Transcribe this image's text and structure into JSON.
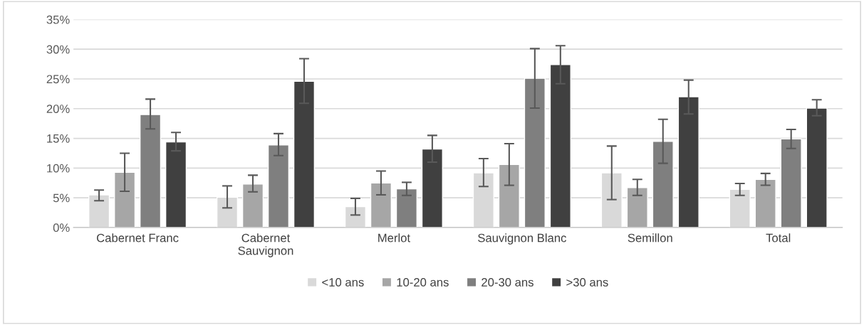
{
  "chart_data": {
    "type": "bar",
    "categories": [
      "Cabernet Franc",
      "Cabernet\nSauvignon",
      "Merlot",
      "Sauvignon Blanc",
      "Semillon",
      "Total"
    ],
    "series": [
      {
        "name": "<10 ans",
        "color": "#d9d9d9",
        "values": [
          5.5,
          5.1,
          3.5,
          9.2,
          9.2,
          6.4
        ],
        "errors": [
          [
            4.5,
            6.3
          ],
          [
            3.3,
            7.0
          ],
          [
            2.1,
            4.9
          ],
          [
            6.9,
            11.6
          ],
          [
            4.7,
            13.7
          ],
          [
            5.4,
            7.4
          ]
        ]
      },
      {
        "name": "10-20 ans",
        "color": "#a6a6a6",
        "values": [
          9.3,
          7.3,
          7.5,
          10.6,
          6.7,
          8.1
        ],
        "errors": [
          [
            6.1,
            12.5
          ],
          [
            6.0,
            8.8
          ],
          [
            5.5,
            9.5
          ],
          [
            7.1,
            14.1
          ],
          [
            5.4,
            8.1
          ],
          [
            7.1,
            9.1
          ]
        ]
      },
      {
        "name": "20-30 ans",
        "color": "#7f7f7f",
        "values": [
          19.0,
          13.9,
          6.5,
          25.1,
          14.5,
          14.9
        ],
        "errors": [
          [
            16.6,
            21.6
          ],
          [
            12.1,
            15.8
          ],
          [
            5.4,
            7.6
          ],
          [
            20.1,
            30.1
          ],
          [
            10.8,
            18.2
          ],
          [
            13.3,
            16.5
          ]
        ]
      },
      {
        "name": ">30 ans",
        "color": "#404040",
        "values": [
          14.4,
          24.6,
          13.2,
          27.4,
          22.0,
          20.1
        ],
        "errors": [
          [
            12.9,
            16.0
          ],
          [
            20.9,
            28.4
          ],
          [
            11.0,
            15.5
          ],
          [
            24.2,
            30.6
          ],
          [
            19.1,
            24.8
          ],
          [
            18.8,
            21.5
          ]
        ]
      }
    ],
    "ylim": [
      0,
      35
    ],
    "yticks": [
      {
        "value": 0,
        "label": "0%"
      },
      {
        "value": 5,
        "label": "5%"
      },
      {
        "value": 10,
        "label": "10%"
      },
      {
        "value": 15,
        "label": "15%"
      },
      {
        "value": 20,
        "label": "20%"
      },
      {
        "value": 25,
        "label": "25%"
      },
      {
        "value": 30,
        "label": "30%"
      },
      {
        "value": 35,
        "label": "35%"
      }
    ],
    "grid": "y",
    "legend": "bottom"
  }
}
